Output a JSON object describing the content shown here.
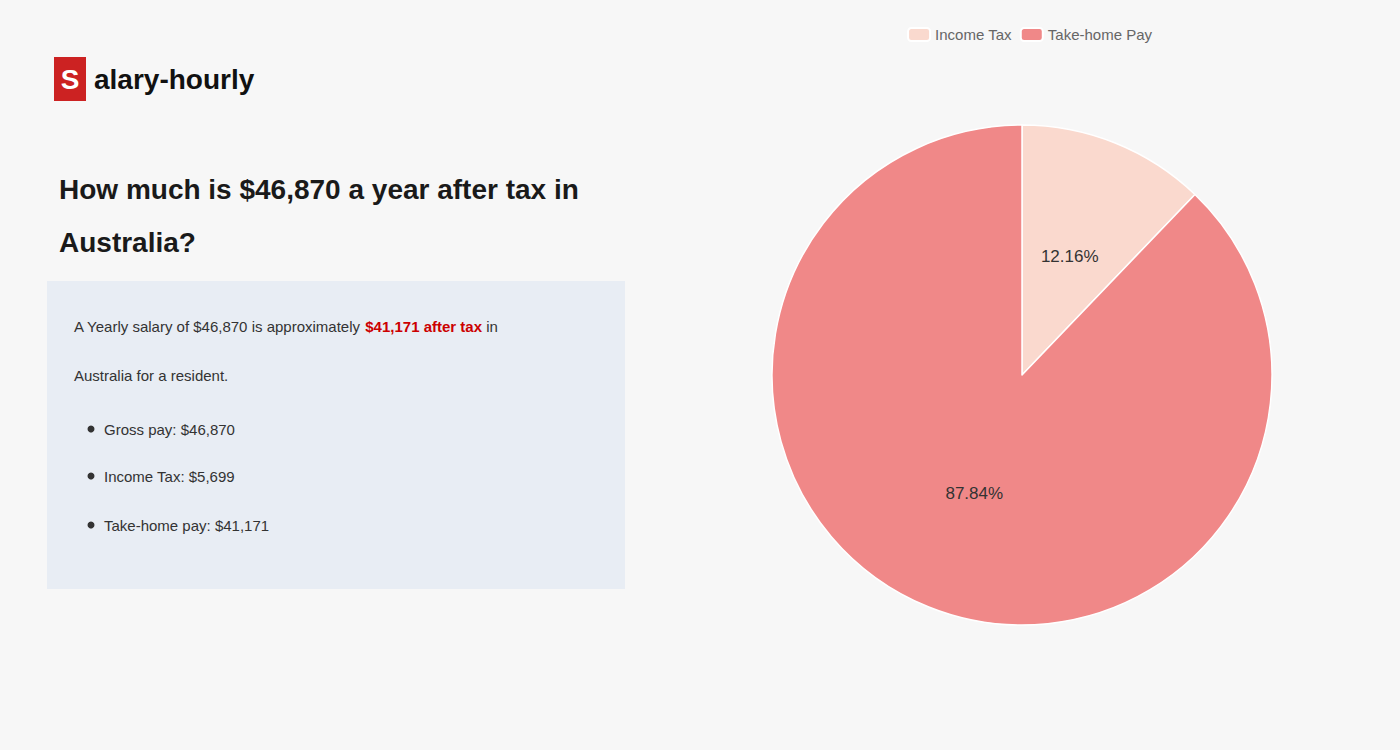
{
  "chart_data": {
    "type": "pie",
    "title": "How much is $46,870 a year after tax in\nAustralia?",
    "categories": [
      "Income Tax",
      "Take-home Pay"
    ],
    "values": [
      12.16,
      87.84
    ],
    "value_labels": [
      "12.16%",
      "87.84%"
    ],
    "colors": [
      "#fad9ce",
      "#f08888"
    ],
    "data_labels": true,
    "legend": "top",
    "annotations": [
      "S",
      "alary-hourly",
      "A Yearly salary of $46,870 is approximately ",
      "$41,171 after tax",
      " in",
      "Australia for a resident.",
      "Gross pay: $46,870",
      "Income Tax: $5,699",
      "Take-home pay: $41,171"
    ]
  }
}
